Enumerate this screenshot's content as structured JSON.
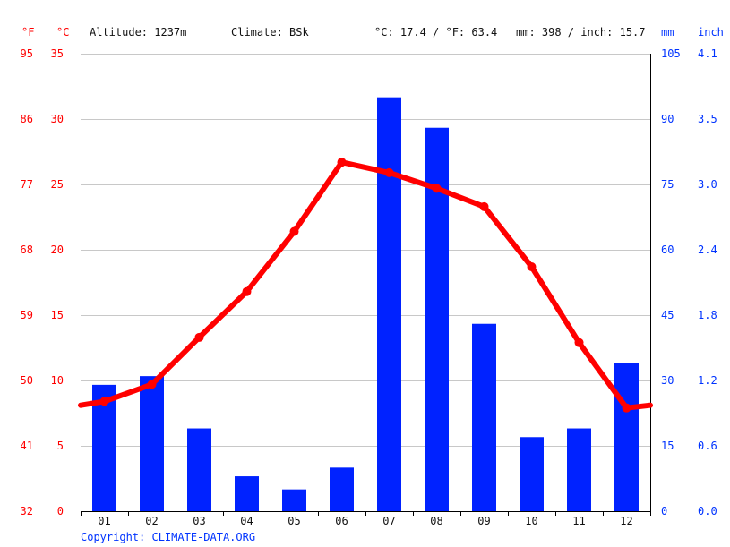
{
  "header": {
    "f_unit": "°F",
    "c_unit": "°C",
    "altitude": "Altitude: 1237m",
    "climate": "Climate: BSk",
    "temp_avg": "°C: 17.4 / °F: 63.4",
    "precip_total": "mm: 398 / inch: 15.7",
    "mm_unit": "mm",
    "inch_unit": "inch"
  },
  "footer": {
    "copyright": "Copyright: CLIMATE-DATA.ORG"
  },
  "colors": {
    "temperature": "#ff0000",
    "precipitation": "#0022ff",
    "grid": "#c8c8c8"
  },
  "chart_data": {
    "type": "bar",
    "categories": [
      "01",
      "02",
      "03",
      "04",
      "05",
      "06",
      "07",
      "08",
      "09",
      "10",
      "11",
      "12"
    ],
    "series": [
      {
        "type": "bar",
        "axis": "right",
        "unit": "mm",
        "values": [
          29,
          31,
          19,
          8,
          5,
          10,
          95,
          88,
          43,
          17,
          19,
          34
        ]
      },
      {
        "type": "line",
        "axis": "left",
        "unit": "°C",
        "values": [
          8.4,
          9.7,
          13.3,
          16.8,
          21.4,
          26.7,
          25.9,
          24.7,
          23.3,
          18.7,
          12.9,
          7.9
        ]
      }
    ],
    "left_axis": {
      "celsius_ticks": [
        "0",
        "5",
        "10",
        "15",
        "20",
        "25",
        "30",
        "35"
      ],
      "fahrenheit_ticks": [
        "32",
        "41",
        "50",
        "59",
        "68",
        "77",
        "86",
        "95"
      ],
      "ylim": [
        0,
        35
      ]
    },
    "right_axis": {
      "mm_ticks": [
        "0",
        "15",
        "30",
        "45",
        "60",
        "75",
        "90",
        "105"
      ],
      "inch_ticks": [
        "0.0",
        "0.6",
        "1.2",
        "1.8",
        "2.4",
        "3.0",
        "3.5",
        "4.1"
      ],
      "ylim": [
        0,
        105
      ]
    },
    "line_edge_values": {
      "left": 8.1,
      "right": 8.1
    },
    "grid": true
  }
}
